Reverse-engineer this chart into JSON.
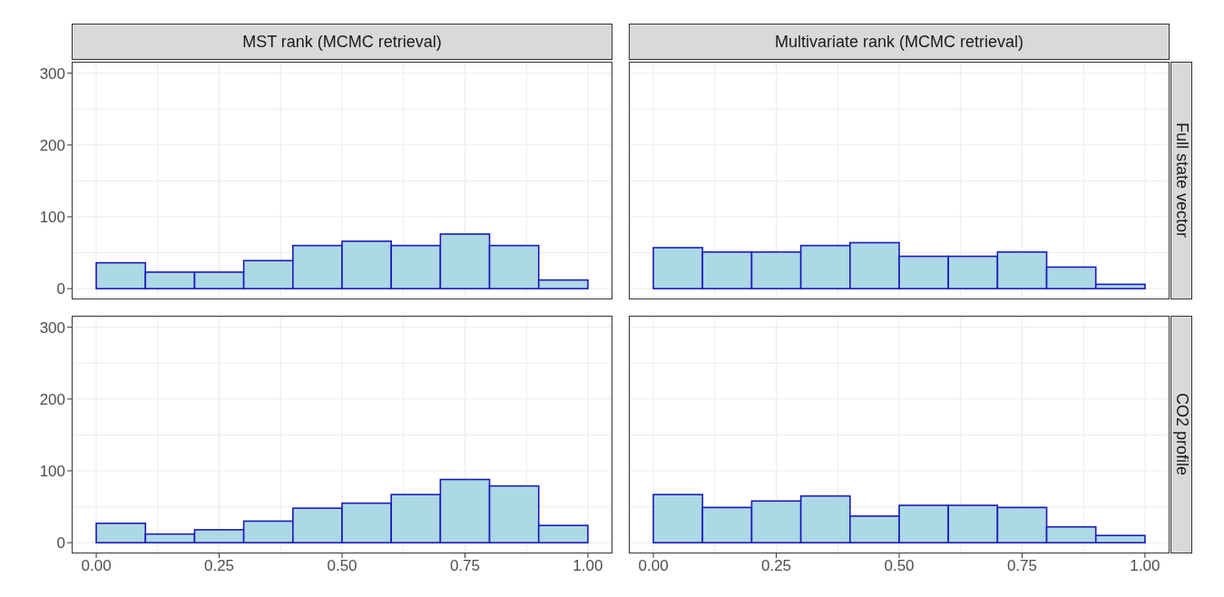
{
  "chart_data": [
    {
      "type": "histogram",
      "title": "MST rank (MCMC retrieval)",
      "bins": [
        0,
        0.1,
        0.2,
        0.3,
        0.4,
        0.5,
        0.6,
        0.7,
        0.8,
        0.9,
        1.0
      ],
      "values": [
        36,
        23,
        23,
        39,
        60,
        66,
        60,
        76,
        60,
        12
      ],
      "color": "#add8e6",
      "xlim": [
        -0.05,
        1.05
      ],
      "xticks": [
        0,
        0.25,
        0.5,
        0.75,
        1
      ],
      "ylim": [
        -15,
        316
      ],
      "yticks": [
        0,
        100,
        200,
        300
      ],
      "grid": true,
      "tick_labels": "y"
    },
    {
      "type": "histogram",
      "title": "Multivariate rank (MCMC retrieval)",
      "y2label": "Full state vector",
      "bins": [
        0,
        0.1,
        0.2,
        0.3,
        0.4,
        0.5,
        0.6,
        0.7,
        0.8,
        0.9,
        1.0
      ],
      "values": [
        57,
        51,
        51,
        60,
        64,
        45,
        45,
        51,
        30,
        6
      ],
      "color": "#add8e6",
      "xlim": [
        -0.05,
        1.05
      ],
      "xticks": [
        0,
        0.25,
        0.5,
        0.75,
        1
      ],
      "ylim": [
        -15,
        316
      ],
      "yticks": [
        0,
        100,
        200,
        300
      ],
      "grid": true,
      "tick_labels": false
    },
    {
      "type": "histogram",
      "bins": [
        0,
        0.1,
        0.2,
        0.3,
        0.4,
        0.5,
        0.6,
        0.7,
        0.8,
        0.9,
        1.0
      ],
      "values": [
        27,
        12,
        18,
        30,
        48,
        55,
        67,
        88,
        79,
        24
      ],
      "color": "#add8e6",
      "xlim": [
        -0.05,
        1.05
      ],
      "xticks": [
        {
          "value": 0,
          "label": "0.00"
        },
        {
          "value": 0.25,
          "label": "0.25"
        },
        {
          "value": 0.5,
          "label": "0.50"
        },
        {
          "value": 0.75,
          "label": "0.75"
        },
        {
          "value": 1,
          "label": "1.00"
        }
      ],
      "ylim": [
        -15,
        316
      ],
      "yticks": [
        0,
        100,
        200,
        300
      ],
      "grid": true
    },
    {
      "type": "histogram",
      "y2label": "CO2 profile",
      "bins": [
        0,
        0.1,
        0.2,
        0.3,
        0.4,
        0.5,
        0.6,
        0.7,
        0.8,
        0.9,
        1.0
      ],
      "values": [
        67,
        49,
        58,
        65,
        37,
        52,
        52,
        49,
        22,
        10
      ],
      "color": "#add8e6",
      "xlim": [
        -0.05,
        1.05
      ],
      "xticks": [
        {
          "value": 0,
          "label": "0.00"
        },
        {
          "value": 0.25,
          "label": "0.25"
        },
        {
          "value": 0.5,
          "label": "0.50"
        },
        {
          "value": 0.75,
          "label": "0.75"
        },
        {
          "value": 1,
          "label": "1.00"
        }
      ],
      "ylim": [
        -15,
        316
      ],
      "yticks": [
        0,
        100,
        200,
        300
      ],
      "grid": true,
      "tick_labels": "x"
    }
  ]
}
